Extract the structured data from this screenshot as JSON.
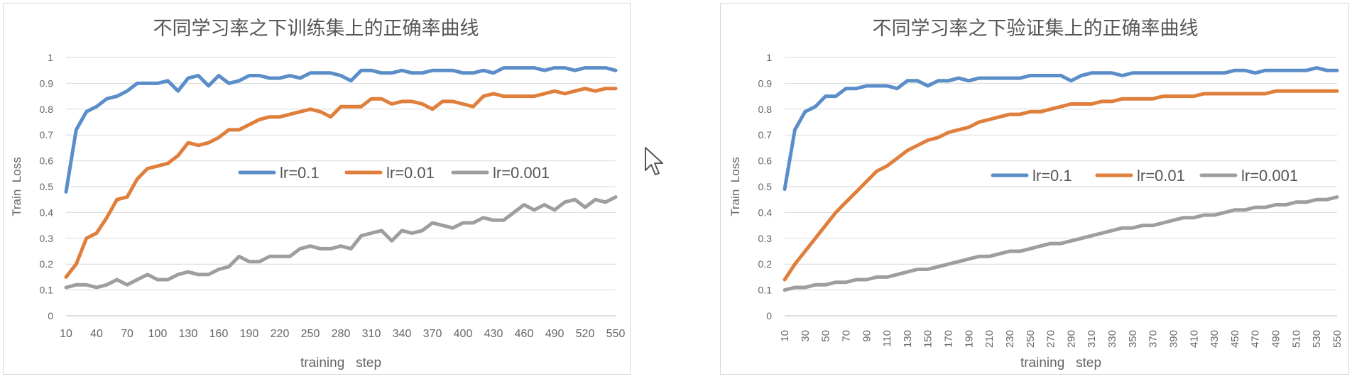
{
  "chart_data": [
    {
      "type": "line",
      "title": "不同学习率之下训练集上的正确率曲线",
      "xlabel": "training   step",
      "ylabel": "Train  Loss",
      "ylim": [
        0,
        1
      ],
      "yticks": [
        "0",
        "0.1",
        "0.2",
        "0.3",
        "0.4",
        "0.5",
        "0.6",
        "0.7",
        "0.8",
        "0.9",
        "1"
      ],
      "xticks": [
        "10",
        "40",
        "70",
        "100",
        "130",
        "160",
        "190",
        "220",
        "250",
        "280",
        "310",
        "340",
        "370",
        "400",
        "430",
        "460",
        "490",
        "520",
        "550"
      ],
      "xtick_rotated": false,
      "grid": true,
      "legend_position": "middle",
      "legend": [
        "lr=0.1",
        "lr=0.01",
        "lr=0.001"
      ],
      "x": [
        10,
        20,
        30,
        40,
        50,
        60,
        70,
        80,
        90,
        100,
        110,
        120,
        130,
        140,
        150,
        160,
        170,
        180,
        190,
        200,
        210,
        220,
        230,
        240,
        250,
        260,
        270,
        280,
        290,
        300,
        310,
        320,
        330,
        340,
        350,
        360,
        370,
        380,
        390,
        400,
        410,
        420,
        430,
        440,
        450,
        460,
        470,
        480,
        490,
        500,
        510,
        520,
        530,
        540,
        550
      ],
      "series": [
        {
          "name": "lr=0.1",
          "color": "#5b8ec9",
          "values": [
            0.48,
            0.72,
            0.79,
            0.81,
            0.84,
            0.85,
            0.87,
            0.9,
            0.9,
            0.9,
            0.91,
            0.87,
            0.92,
            0.93,
            0.89,
            0.93,
            0.9,
            0.91,
            0.93,
            0.93,
            0.92,
            0.92,
            0.93,
            0.92,
            0.94,
            0.94,
            0.94,
            0.93,
            0.91,
            0.95,
            0.95,
            0.94,
            0.94,
            0.95,
            0.94,
            0.94,
            0.95,
            0.95,
            0.95,
            0.94,
            0.94,
            0.95,
            0.94,
            0.96,
            0.96,
            0.96,
            0.96,
            0.95,
            0.96,
            0.96,
            0.95,
            0.96,
            0.96,
            0.96,
            0.95
          ]
        },
        {
          "name": "lr=0.01",
          "color": "#e07f3c",
          "values": [
            0.15,
            0.2,
            0.3,
            0.32,
            0.38,
            0.45,
            0.46,
            0.53,
            0.57,
            0.58,
            0.59,
            0.62,
            0.67,
            0.66,
            0.67,
            0.69,
            0.72,
            0.72,
            0.74,
            0.76,
            0.77,
            0.77,
            0.78,
            0.79,
            0.8,
            0.79,
            0.77,
            0.81,
            0.81,
            0.81,
            0.84,
            0.84,
            0.82,
            0.83,
            0.83,
            0.82,
            0.8,
            0.83,
            0.83,
            0.82,
            0.81,
            0.85,
            0.86,
            0.85,
            0.85,
            0.85,
            0.85,
            0.86,
            0.87,
            0.86,
            0.87,
            0.88,
            0.87,
            0.88,
            0.88
          ]
        },
        {
          "name": "lr=0.001",
          "color": "#9e9e9e",
          "values": [
            0.11,
            0.12,
            0.12,
            0.11,
            0.12,
            0.14,
            0.12,
            0.14,
            0.16,
            0.14,
            0.14,
            0.16,
            0.17,
            0.16,
            0.16,
            0.18,
            0.19,
            0.23,
            0.21,
            0.21,
            0.23,
            0.23,
            0.23,
            0.26,
            0.27,
            0.26,
            0.26,
            0.27,
            0.26,
            0.31,
            0.32,
            0.33,
            0.29,
            0.33,
            0.32,
            0.33,
            0.36,
            0.35,
            0.34,
            0.36,
            0.36,
            0.38,
            0.37,
            0.37,
            0.4,
            0.43,
            0.41,
            0.43,
            0.41,
            0.44,
            0.45,
            0.42,
            0.45,
            0.44,
            0.46
          ]
        }
      ]
    },
    {
      "type": "line",
      "title": "不同学习率之下验证集上的正确率曲线",
      "xlabel": "training   step",
      "ylabel": "Train  Loss",
      "ylim": [
        0,
        1
      ],
      "yticks": [
        "0",
        "0.1",
        "0.2",
        "0.3",
        "0.4",
        "0.5",
        "0.6",
        "0.7",
        "0.8",
        "0.9",
        "1"
      ],
      "xticks": [
        "10",
        "30",
        "50",
        "70",
        "90",
        "110",
        "130",
        "150",
        "170",
        "190",
        "210",
        "230",
        "250",
        "270",
        "290",
        "310",
        "330",
        "350",
        "370",
        "390",
        "410",
        "430",
        "450",
        "470",
        "490",
        "510",
        "530",
        "550"
      ],
      "xtick_rotated": true,
      "grid": true,
      "legend_position": "middle",
      "legend": [
        "lr=0.1",
        "lr=0.01",
        "lr=0.001"
      ],
      "x": [
        10,
        20,
        30,
        40,
        50,
        60,
        70,
        80,
        90,
        100,
        110,
        120,
        130,
        140,
        150,
        160,
        170,
        180,
        190,
        200,
        210,
        220,
        230,
        240,
        250,
        260,
        270,
        280,
        290,
        300,
        310,
        320,
        330,
        340,
        350,
        360,
        370,
        380,
        390,
        400,
        410,
        420,
        430,
        440,
        450,
        460,
        470,
        480,
        490,
        500,
        510,
        520,
        530,
        540,
        550
      ],
      "series": [
        {
          "name": "lr=0.1",
          "color": "#5b8ec9",
          "values": [
            0.49,
            0.72,
            0.79,
            0.81,
            0.85,
            0.85,
            0.88,
            0.88,
            0.89,
            0.89,
            0.89,
            0.88,
            0.91,
            0.91,
            0.89,
            0.91,
            0.91,
            0.92,
            0.91,
            0.92,
            0.92,
            0.92,
            0.92,
            0.92,
            0.93,
            0.93,
            0.93,
            0.93,
            0.91,
            0.93,
            0.94,
            0.94,
            0.94,
            0.93,
            0.94,
            0.94,
            0.94,
            0.94,
            0.94,
            0.94,
            0.94,
            0.94,
            0.94,
            0.94,
            0.95,
            0.95,
            0.94,
            0.95,
            0.95,
            0.95,
            0.95,
            0.95,
            0.96,
            0.95,
            0.95
          ]
        },
        {
          "name": "lr=0.01",
          "color": "#e07f3c",
          "values": [
            0.14,
            0.2,
            0.25,
            0.3,
            0.35,
            0.4,
            0.44,
            0.48,
            0.52,
            0.56,
            0.58,
            0.61,
            0.64,
            0.66,
            0.68,
            0.69,
            0.71,
            0.72,
            0.73,
            0.75,
            0.76,
            0.77,
            0.78,
            0.78,
            0.79,
            0.79,
            0.8,
            0.81,
            0.82,
            0.82,
            0.82,
            0.83,
            0.83,
            0.84,
            0.84,
            0.84,
            0.84,
            0.85,
            0.85,
            0.85,
            0.85,
            0.86,
            0.86,
            0.86,
            0.86,
            0.86,
            0.86,
            0.86,
            0.87,
            0.87,
            0.87,
            0.87,
            0.87,
            0.87,
            0.87
          ]
        },
        {
          "name": "lr=0.001",
          "color": "#9e9e9e",
          "values": [
            0.1,
            0.11,
            0.11,
            0.12,
            0.12,
            0.13,
            0.13,
            0.14,
            0.14,
            0.15,
            0.15,
            0.16,
            0.17,
            0.18,
            0.18,
            0.19,
            0.2,
            0.21,
            0.22,
            0.23,
            0.23,
            0.24,
            0.25,
            0.25,
            0.26,
            0.27,
            0.28,
            0.28,
            0.29,
            0.3,
            0.31,
            0.32,
            0.33,
            0.34,
            0.34,
            0.35,
            0.35,
            0.36,
            0.37,
            0.38,
            0.38,
            0.39,
            0.39,
            0.4,
            0.41,
            0.41,
            0.42,
            0.42,
            0.43,
            0.43,
            0.44,
            0.44,
            0.45,
            0.45,
            0.46
          ]
        }
      ]
    }
  ]
}
